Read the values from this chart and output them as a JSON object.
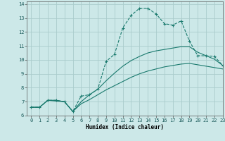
{
  "xlabel": "Humidex (Indice chaleur)",
  "bg_color": "#cce8e8",
  "grid_color": "#aacccc",
  "line_color": "#1a7a6e",
  "xlim": [
    -0.5,
    23
  ],
  "ylim": [
    6,
    14.2
  ],
  "xticks": [
    0,
    1,
    2,
    3,
    4,
    5,
    6,
    7,
    8,
    9,
    10,
    11,
    12,
    13,
    14,
    15,
    16,
    17,
    18,
    19,
    20,
    21,
    22,
    23
  ],
  "yticks": [
    6,
    7,
    8,
    9,
    10,
    11,
    12,
    13,
    14
  ],
  "series1_x": [
    0,
    1,
    2,
    3,
    4,
    5,
    6,
    7,
    8,
    9,
    10,
    11,
    12,
    13,
    14,
    15,
    16,
    17,
    18,
    19,
    20,
    21,
    22,
    23
  ],
  "series1_y": [
    6.6,
    6.6,
    7.1,
    7.1,
    7.0,
    6.3,
    7.4,
    7.5,
    7.9,
    9.9,
    10.4,
    12.3,
    13.2,
    13.7,
    13.7,
    13.3,
    12.6,
    12.5,
    12.8,
    11.35,
    10.3,
    10.3,
    10.25,
    9.6
  ],
  "series2_x": [
    0,
    1,
    2,
    3,
    4,
    5,
    6,
    7,
    8,
    9,
    10,
    11,
    12,
    13,
    14,
    15,
    16,
    17,
    18,
    19,
    20,
    21,
    22,
    23
  ],
  "series2_y": [
    6.6,
    6.6,
    7.1,
    7.1,
    7.0,
    6.3,
    7.0,
    7.5,
    7.9,
    8.5,
    9.05,
    9.55,
    9.95,
    10.25,
    10.5,
    10.65,
    10.75,
    10.85,
    10.95,
    10.95,
    10.55,
    10.3,
    10.05,
    9.6
  ],
  "series3_x": [
    0,
    1,
    2,
    3,
    4,
    5,
    6,
    7,
    8,
    9,
    10,
    11,
    12,
    13,
    14,
    15,
    16,
    17,
    18,
    19,
    20,
    21,
    22,
    23
  ],
  "series3_y": [
    6.6,
    6.6,
    7.1,
    7.05,
    7.0,
    6.3,
    6.85,
    7.15,
    7.5,
    7.85,
    8.15,
    8.45,
    8.75,
    9.0,
    9.2,
    9.35,
    9.5,
    9.6,
    9.7,
    9.75,
    9.65,
    9.55,
    9.45,
    9.35
  ]
}
